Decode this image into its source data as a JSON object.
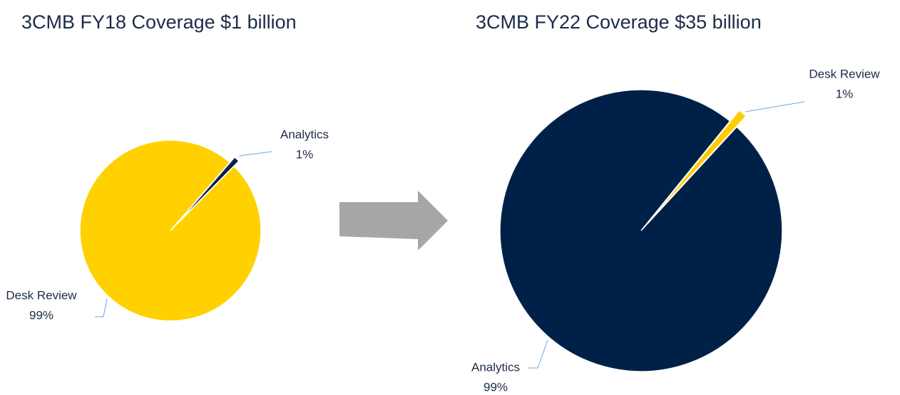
{
  "chart_data": [
    {
      "type": "pie",
      "title": "3CMB FY18 Coverage $1 billion",
      "categories": [
        "Analytics",
        "Desk Review"
      ],
      "values": [
        1,
        99
      ],
      "value_labels": [
        "1%",
        "99%"
      ],
      "colors": [
        "#0b2147",
        "#ffd100"
      ]
    },
    {
      "type": "pie",
      "title": "3CMB FY22 Coverage $35 billion",
      "categories": [
        "Analytics",
        "Desk Review"
      ],
      "values": [
        99,
        1
      ],
      "value_labels": [
        "99%",
        "1%"
      ],
      "colors": [
        "#002147",
        "#ffcc00"
      ]
    }
  ]
}
